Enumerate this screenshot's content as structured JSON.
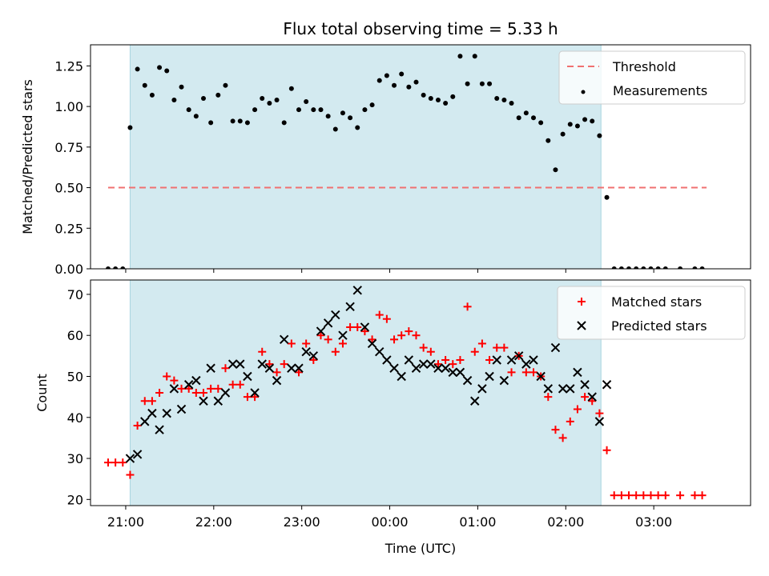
{
  "title": "Flux total observing time = 5.33 h",
  "chart_data": [
    {
      "type": "scatter",
      "ylabel": "Matched/Predicted stars",
      "xlabel": "",
      "ylim": [
        0,
        1.38
      ],
      "x_range": [
        "20:36",
        "04:06"
      ],
      "yticks": [
        "0.00",
        "0.25",
        "0.50",
        "0.75",
        "1.00",
        "1.25"
      ],
      "ytick_values": [
        0,
        0.25,
        0.5,
        0.75,
        1.0,
        1.25
      ],
      "shaded_span": [
        "21:03",
        "02:24"
      ],
      "shaded_color": "#d3eaf0",
      "threshold": {
        "name": "Threshold",
        "value": 0.5,
        "x_from": "20:48",
        "x_to": "03:36",
        "color": "#f07070"
      },
      "legend": {
        "placement": "top-right",
        "entries": [
          "Threshold",
          "Measurements"
        ]
      },
      "series": [
        {
          "name": "Measurements",
          "marker": "dot",
          "color": "#000000",
          "x": [
            "20:48",
            "20:53",
            "20:58",
            "21:03",
            "21:08",
            "21:13",
            "21:18",
            "21:23",
            "21:28",
            "21:33",
            "21:38",
            "21:43",
            "21:48",
            "21:53",
            "21:58",
            "22:03",
            "22:08",
            "22:13",
            "22:18",
            "22:23",
            "22:28",
            "22:33",
            "22:38",
            "22:43",
            "22:48",
            "22:53",
            "22:58",
            "23:03",
            "23:08",
            "23:13",
            "23:18",
            "23:23",
            "23:28",
            "23:33",
            "23:38",
            "23:43",
            "23:48",
            "23:53",
            "23:58",
            "00:03",
            "00:08",
            "00:13",
            "00:18",
            "00:23",
            "00:28",
            "00:33",
            "00:38",
            "00:43",
            "00:48",
            "00:53",
            "00:58",
            "01:03",
            "01:08",
            "01:13",
            "01:18",
            "01:23",
            "01:28",
            "01:33",
            "01:38",
            "01:43",
            "01:48",
            "01:53",
            "01:58",
            "02:03",
            "02:08",
            "02:13",
            "02:18",
            "02:23",
            "02:28",
            "02:33",
            "02:38",
            "02:43",
            "02:48",
            "02:53",
            "02:58",
            "03:03",
            "03:08",
            "03:18",
            "03:28",
            "03:33"
          ],
          "y": [
            0.0,
            0.0,
            0.0,
            0.87,
            1.23,
            1.13,
            1.07,
            1.24,
            1.22,
            1.04,
            1.12,
            0.98,
            0.94,
            1.05,
            0.9,
            1.07,
            1.13,
            0.91,
            0.91,
            0.9,
            0.98,
            1.05,
            1.02,
            1.04,
            0.9,
            1.11,
            0.98,
            1.03,
            0.98,
            0.98,
            0.94,
            0.86,
            0.96,
            0.93,
            0.87,
            0.98,
            1.01,
            1.16,
            1.19,
            1.13,
            1.2,
            1.12,
            1.15,
            1.07,
            1.05,
            1.04,
            1.02,
            1.06,
            1.31,
            1.14,
            1.31,
            1.14,
            1.14,
            1.05,
            1.04,
            1.02,
            0.93,
            0.96,
            0.93,
            0.9,
            0.79,
            0.61,
            0.83,
            0.89,
            0.88,
            0.92,
            0.91,
            0.82,
            0.44,
            0.0,
            0.0,
            0.0,
            0.0,
            0.0,
            0.0,
            0.0,
            0.0,
            0.0,
            0.0,
            0.0
          ]
        }
      ]
    },
    {
      "type": "scatter",
      "ylabel": "Count",
      "xlabel": "Time (UTC)",
      "ylim": [
        18.5,
        73.5
      ],
      "x_range": [
        "20:36",
        "04:06"
      ],
      "xticks": [
        "21:00",
        "22:00",
        "23:00",
        "00:00",
        "01:00",
        "02:00",
        "03:00"
      ],
      "yticks": [
        "20",
        "30",
        "40",
        "50",
        "60",
        "70"
      ],
      "ytick_values": [
        20,
        30,
        40,
        50,
        60,
        70
      ],
      "shaded_span": [
        "21:03",
        "02:24"
      ],
      "shaded_color": "#d3eaf0",
      "legend": {
        "placement": "top-right",
        "entries": [
          "Matched stars",
          "Predicted stars"
        ]
      },
      "series": [
        {
          "name": "Matched stars",
          "marker": "plus",
          "color": "#ff0000",
          "x": [
            "20:48",
            "20:53",
            "20:58",
            "21:03",
            "21:08",
            "21:13",
            "21:18",
            "21:23",
            "21:28",
            "21:33",
            "21:38",
            "21:43",
            "21:48",
            "21:53",
            "21:58",
            "22:03",
            "22:08",
            "22:13",
            "22:18",
            "22:23",
            "22:28",
            "22:33",
            "22:38",
            "22:43",
            "22:48",
            "22:53",
            "22:58",
            "23:03",
            "23:08",
            "23:13",
            "23:18",
            "23:23",
            "23:28",
            "23:33",
            "23:38",
            "23:43",
            "23:48",
            "23:53",
            "23:58",
            "00:03",
            "00:08",
            "00:13",
            "00:18",
            "00:23",
            "00:28",
            "00:33",
            "00:38",
            "00:43",
            "00:48",
            "00:53",
            "00:58",
            "01:03",
            "01:08",
            "01:13",
            "01:18",
            "01:23",
            "01:28",
            "01:33",
            "01:38",
            "01:43",
            "01:48",
            "01:53",
            "01:58",
            "02:03",
            "02:08",
            "02:13",
            "02:18",
            "02:23",
            "02:28",
            "02:33",
            "02:38",
            "02:43",
            "02:48",
            "02:53",
            "02:58",
            "03:03",
            "03:08",
            "03:18",
            "03:28",
            "03:33"
          ],
          "y": [
            29,
            29,
            29,
            26,
            38,
            44,
            44,
            46,
            50,
            49,
            47,
            47,
            46,
            46,
            47,
            47,
            52,
            48,
            48,
            45,
            45,
            56,
            53,
            51,
            53,
            58,
            51,
            58,
            54,
            60,
            59,
            56,
            58,
            62,
            62,
            61,
            59,
            65,
            64,
            59,
            60,
            61,
            60,
            57,
            56,
            53,
            54,
            53,
            54,
            67,
            56,
            58,
            54,
            57,
            57,
            51,
            55,
            51,
            51,
            50,
            45,
            37,
            35,
            39,
            42,
            45,
            44,
            41,
            32,
            21,
            21,
            21,
            21,
            21,
            21,
            21,
            21,
            21,
            21,
            21
          ]
        },
        {
          "name": "Predicted stars",
          "marker": "x",
          "color": "#000000",
          "x": [
            "21:03",
            "21:08",
            "21:13",
            "21:18",
            "21:23",
            "21:28",
            "21:33",
            "21:38",
            "21:43",
            "21:48",
            "21:53",
            "21:58",
            "22:03",
            "22:08",
            "22:13",
            "22:18",
            "22:23",
            "22:28",
            "22:33",
            "22:38",
            "22:43",
            "22:48",
            "22:53",
            "22:58",
            "23:03",
            "23:08",
            "23:13",
            "23:18",
            "23:23",
            "23:28",
            "23:33",
            "23:38",
            "23:43",
            "23:48",
            "23:53",
            "23:58",
            "00:03",
            "00:08",
            "00:13",
            "00:18",
            "00:23",
            "00:28",
            "00:33",
            "00:38",
            "00:43",
            "00:48",
            "00:53",
            "00:58",
            "01:03",
            "01:08",
            "01:13",
            "01:18",
            "01:23",
            "01:28",
            "01:33",
            "01:38",
            "01:43",
            "01:48",
            "01:53",
            "01:58",
            "02:03",
            "02:08",
            "02:13",
            "02:18",
            "02:23",
            "02:28"
          ],
          "y": [
            30,
            31,
            39,
            41,
            37,
            41,
            47,
            42,
            48,
            49,
            44,
            52,
            44,
            46,
            53,
            53,
            50,
            46,
            53,
            52,
            49,
            59,
            52,
            52,
            56,
            55,
            61,
            63,
            65,
            60,
            67,
            71,
            62,
            58,
            56,
            54,
            52,
            50,
            54,
            52,
            53,
            53,
            52,
            52,
            51,
            51,
            49,
            44,
            47,
            50,
            54,
            49,
            54,
            55,
            53,
            54,
            50,
            47,
            57,
            47,
            47,
            51,
            48,
            45,
            39,
            48
          ]
        }
      ]
    }
  ]
}
